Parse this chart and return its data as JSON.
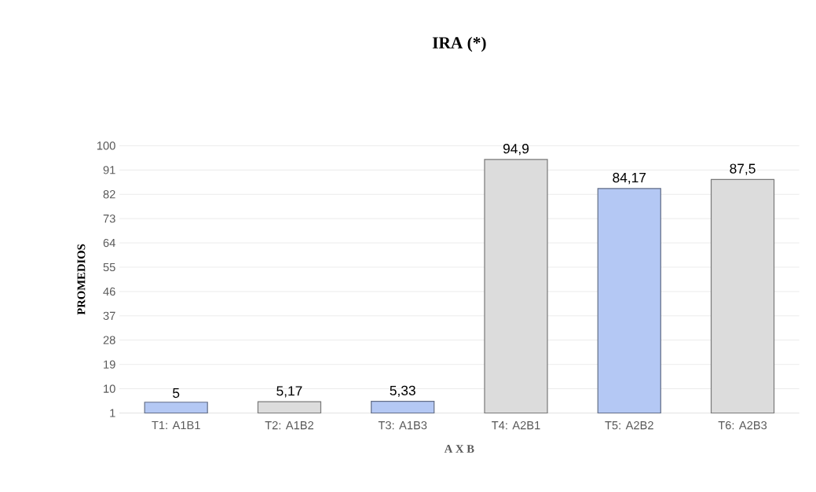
{
  "chart_data": {
    "type": "bar",
    "title": "IRA (*)",
    "xlabel": "A X B",
    "ylabel": "PROMEDIOS",
    "categories": [
      "T1: A1B1",
      "T2: A1B2",
      "T3: A1B3",
      "T4: A2B1",
      "T5: A2B2",
      "T6: A2B3"
    ],
    "values": [
      5,
      5.17,
      5.33,
      94.9,
      84.17,
      87.5
    ],
    "value_labels": [
      "5",
      "5,17",
      "5,33",
      "94,9",
      "84,17",
      "87,5"
    ],
    "colors": [
      "#b4c8f4",
      "#dcdcdc",
      "#b4c8f4",
      "#dcdcdc",
      "#b4c8f4",
      "#dcdcdc"
    ],
    "ylim": [
      1,
      100
    ],
    "yticks": [
      1,
      10,
      19,
      28,
      37,
      46,
      55,
      64,
      73,
      82,
      91,
      100
    ],
    "grid": "y"
  }
}
